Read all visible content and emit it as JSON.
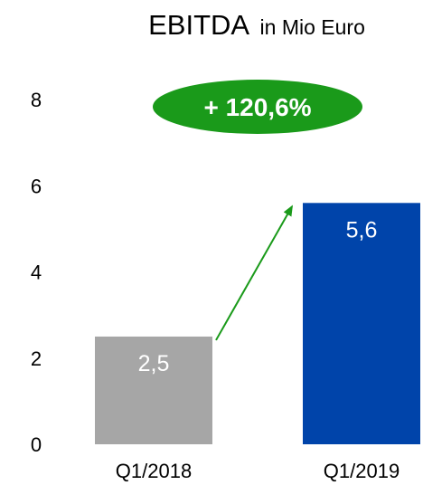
{
  "chart_data": {
    "type": "bar",
    "title": "EBITDA",
    "subtitle": "in Mio Euro",
    "categories": [
      "Q1/2018",
      "Q1/2019"
    ],
    "values": [
      2.5,
      5.6
    ],
    "value_labels": [
      "2,5",
      "5,6"
    ],
    "bar_colors": [
      "#a6a6a6",
      "#0044aa"
    ],
    "ylim": [
      0,
      8
    ],
    "yticks": [
      0,
      2,
      4,
      6,
      8
    ],
    "ytick_labels": [
      "0",
      "2",
      "4",
      "6",
      "8"
    ],
    "xlabel": "",
    "ylabel": "",
    "grid": false,
    "annotation": {
      "text": "+ 120,6%",
      "color": "#1a9a1a",
      "arrow_color": "#1a9a1a",
      "arrow_icon": "arrow-up-right-icon"
    }
  }
}
